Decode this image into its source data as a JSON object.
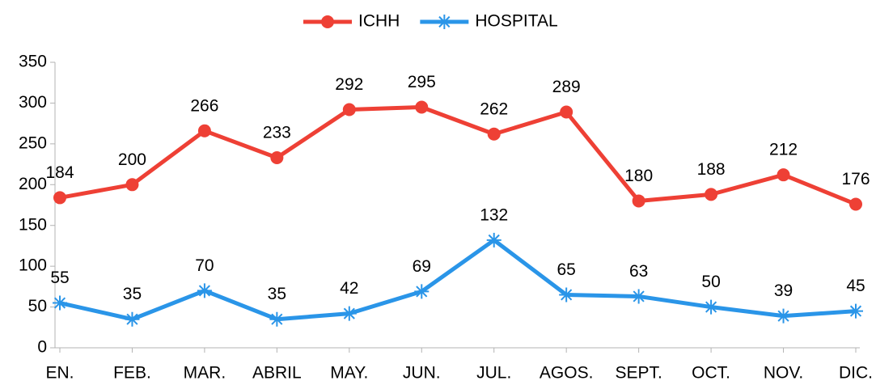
{
  "chart_data": {
    "type": "line",
    "categories": [
      "EN.",
      "FEB.",
      "MAR.",
      "ABRIL",
      "MAY.",
      "JUN.",
      "JUL.",
      "AGOS.",
      "SEPT.",
      "OCT.",
      "NOV.",
      "DIC."
    ],
    "series": [
      {
        "name": "ICHH",
        "color": "#ee4035",
        "marker": "circle",
        "values": [
          184,
          200,
          266,
          233,
          292,
          295,
          262,
          289,
          180,
          188,
          212,
          176
        ]
      },
      {
        "name": "HOSPITAL",
        "color": "#2a95e8",
        "marker": "star",
        "values": [
          55,
          35,
          70,
          35,
          42,
          69,
          132,
          65,
          63,
          50,
          39,
          45
        ]
      }
    ],
    "ylim": [
      0,
      350
    ],
    "yticks": [
      0,
      50,
      100,
      150,
      200,
      250,
      300,
      350
    ],
    "grid": false,
    "legend": "top"
  }
}
